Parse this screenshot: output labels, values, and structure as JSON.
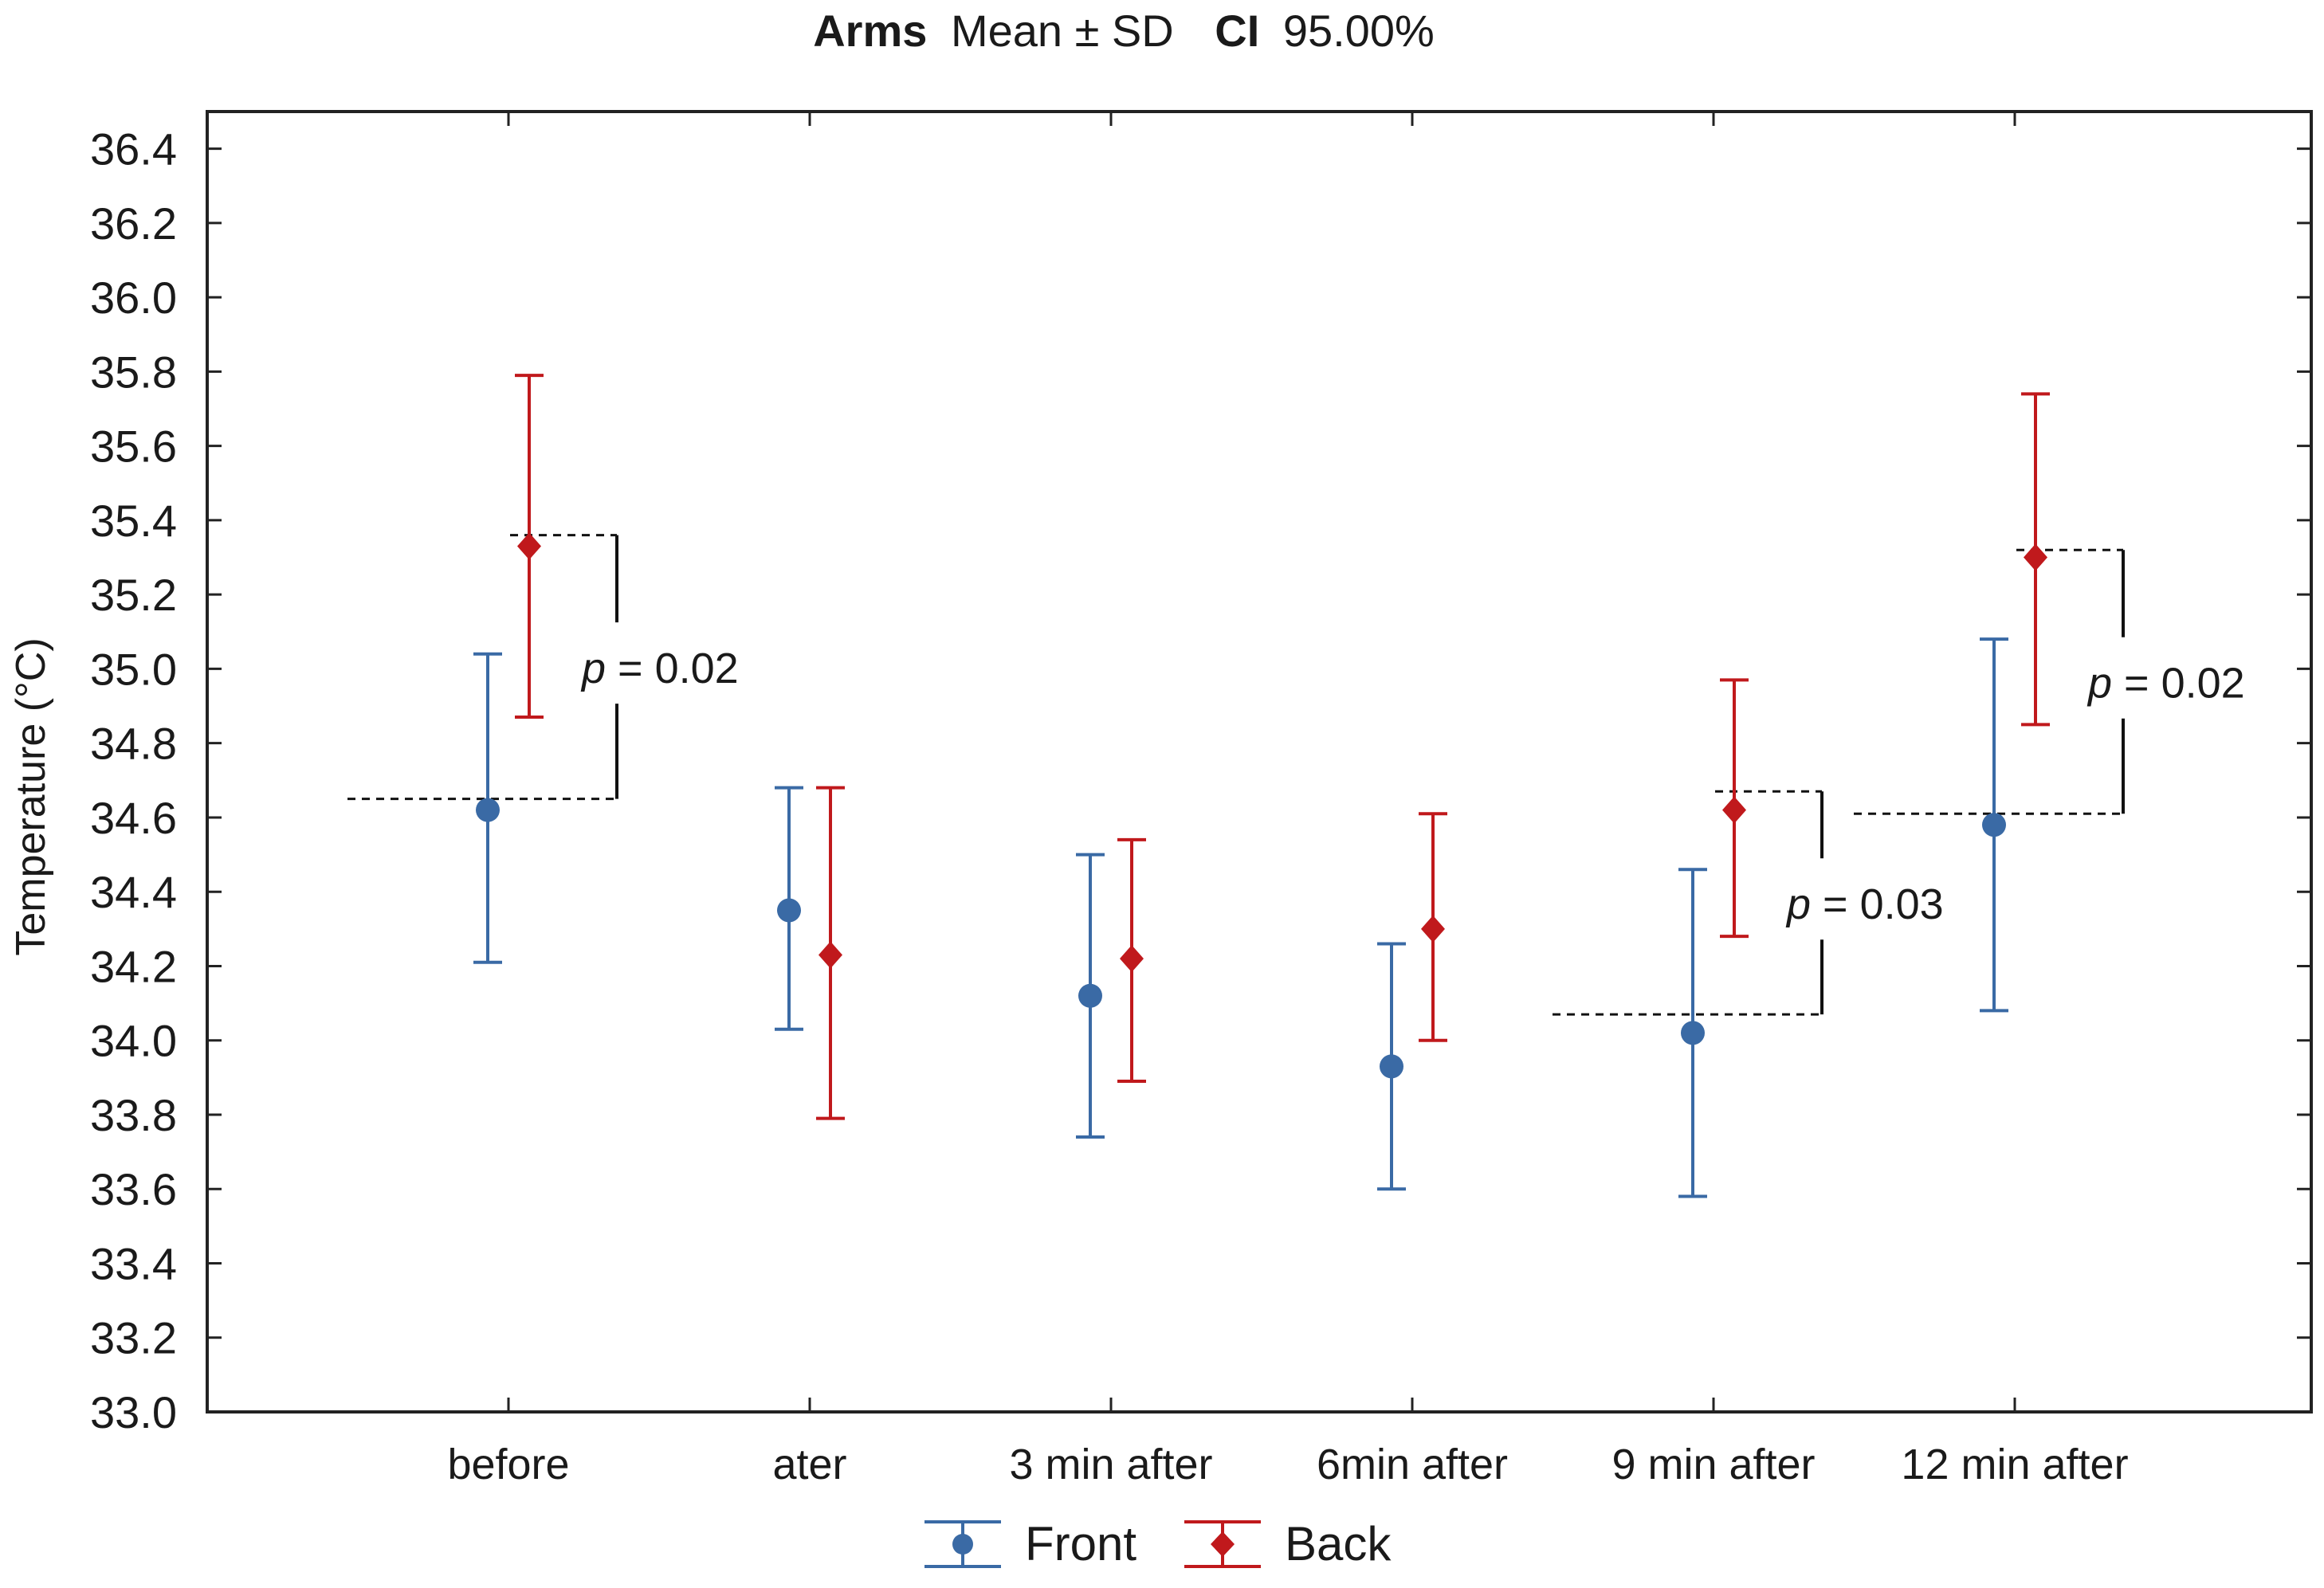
{
  "chart_data": {
    "type": "scatter",
    "subtype": "mean-with-error-bars",
    "title": {
      "bold_part_1": "Arms",
      "regular_part_1": "Mean ± SD",
      "bold_part_2": "CI",
      "regular_part_2": "95.00%"
    },
    "xlabel": "",
    "ylabel": "Temperature (°C)",
    "ylim": [
      33.0,
      36.5
    ],
    "yticks": [
      33.0,
      33.2,
      33.4,
      33.6,
      33.8,
      34.0,
      34.2,
      34.4,
      34.6,
      34.8,
      35.0,
      35.2,
      35.4,
      35.6,
      35.8,
      36.0,
      36.2,
      36.4
    ],
    "ytick_labels": [
      "33.0",
      "33.2",
      "33.4",
      "33.6",
      "33.8",
      "34.0",
      "34.2",
      "34.4",
      "34.6",
      "34.8",
      "35.0",
      "35.2",
      "35.4",
      "35.6",
      "35.8",
      "36.0",
      "36.2",
      "36.4"
    ],
    "categories": [
      "before",
      "ater",
      "3 min after",
      "6min after",
      "9 min after",
      "12 min after"
    ],
    "series": [
      {
        "name": "Front",
        "color": "#3a6aa5",
        "marker": "circle",
        "mean": [
          34.62,
          34.35,
          34.12,
          33.93,
          34.02,
          34.58
        ],
        "lower": [
          34.21,
          34.03,
          33.74,
          33.6,
          33.58,
          34.08
        ],
        "upper": [
          35.04,
          34.68,
          34.5,
          34.26,
          34.46,
          35.08
        ]
      },
      {
        "name": "Back",
        "color": "#c0191c",
        "marker": "diamond",
        "mean": [
          35.33,
          34.23,
          34.22,
          34.3,
          34.62,
          35.3
        ],
        "lower": [
          34.87,
          33.79,
          33.89,
          34.0,
          34.28,
          34.85
        ],
        "upper": [
          35.79,
          34.68,
          34.54,
          34.61,
          34.97,
          35.74
        ]
      }
    ],
    "annotations": [
      {
        "category_index": 0,
        "p_symbol": "p",
        "p_rest": " = 0.02",
        "from_value": 34.65,
        "to_value": 35.36
      },
      {
        "category_index": 4,
        "p_symbol": "p",
        "p_rest": " = 0.03",
        "from_value": 34.07,
        "to_value": 34.67
      },
      {
        "category_index": 5,
        "p_symbol": "p",
        "p_rest": " = 0.02",
        "from_value": 34.61,
        "to_value": 35.32
      }
    ],
    "legend": {
      "placement": "bottom-center",
      "entries": [
        "Front",
        "Back"
      ]
    },
    "grid": false
  }
}
